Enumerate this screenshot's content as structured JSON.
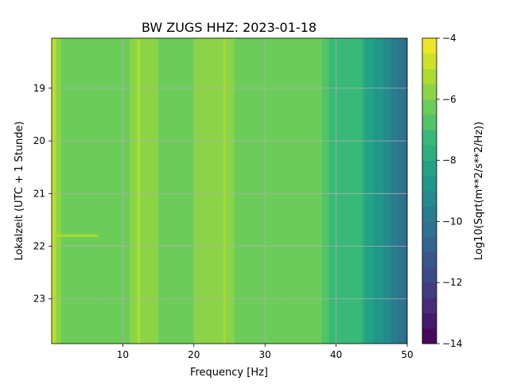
{
  "chart_data": {
    "type": "heatmap",
    "title": "BW ZUGS  HHZ: 2023-01-18",
    "xlabel": "Frequency [Hz]",
    "ylabel": "Lokalzeit (UTC + 1 Stunde)",
    "xlim": [
      0,
      50
    ],
    "ylim": [
      18.05,
      23.85
    ],
    "y_inverted": true,
    "x_ticks": [
      10,
      20,
      30,
      40,
      50
    ],
    "y_ticks": [
      19,
      20,
      21,
      22,
      23
    ],
    "grid": true,
    "colormap": "viridis",
    "colorbar": {
      "label": "Log10(Sqrt(m**2/s**2/Hz))",
      "range": [
        -14,
        -4
      ],
      "ticks": [
        -4,
        -6,
        -8,
        -10,
        -12,
        -14
      ],
      "levels": 20
    },
    "frequency_profile": {
      "frequency_hz": [
        0.3,
        0.8,
        2,
        5,
        8,
        10,
        12.3,
        13,
        15,
        18,
        20,
        22,
        24,
        26,
        28,
        30,
        33,
        36,
        38,
        39.6,
        40.5,
        42,
        43.5,
        44,
        45,
        46,
        47,
        48,
        49,
        50
      ],
      "log10_amplitude": [
        -4.8,
        -5.6,
        -6.4,
        -6.5,
        -6.5,
        -6.4,
        -5.4,
        -6.0,
        -6.0,
        -6.1,
        -6.0,
        -5.9,
        -5.6,
        -6.1,
        -6.1,
        -6.1,
        -6.3,
        -6.4,
        -6.5,
        -7.3,
        -7.4,
        -7.5,
        -7.5,
        -8.0,
        -8.4,
        -8.8,
        -9.2,
        -9.7,
        -10.2,
        -10.7
      ]
    },
    "features": [
      {
        "type": "line",
        "frequency_hz": 12.3,
        "time": [
          18.05,
          23.85
        ],
        "log10_amplitude": -5.4
      },
      {
        "type": "line",
        "frequency_hz": 24.3,
        "time": [
          18.05,
          23.85
        ],
        "log10_amplitude": -5.3
      },
      {
        "type": "band",
        "frequency_hz": [
          0.5,
          6.5
        ],
        "time": 21.8,
        "log10_amplitude": -5.2
      }
    ]
  }
}
